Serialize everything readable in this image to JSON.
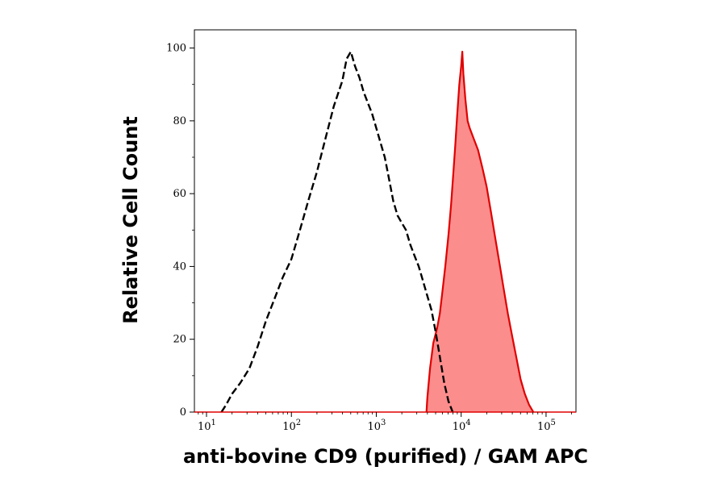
{
  "chart_data": {
    "type": "area",
    "xlabel": "anti-bovine CD9 (purified) / GAM APC",
    "ylabel": "Relative Cell Count",
    "x_scale": "log",
    "xlim": [
      7.2,
      225000
    ],
    "ylim": [
      0,
      105
    ],
    "x_ticks": [
      {
        "value": 10,
        "base": "10",
        "exp": "1"
      },
      {
        "value": 100,
        "base": "10",
        "exp": "2"
      },
      {
        "value": 1000,
        "base": "10",
        "exp": "3"
      },
      {
        "value": 10000,
        "base": "10",
        "exp": "4"
      },
      {
        "value": 100000,
        "base": "10",
        "exp": "5"
      }
    ],
    "y_ticks": [
      {
        "value": 0,
        "label": "0"
      },
      {
        "value": 20,
        "label": "20"
      },
      {
        "value": 40,
        "label": "40"
      },
      {
        "value": 60,
        "label": "60"
      },
      {
        "value": 80,
        "label": "80"
      },
      {
        "value": 100,
        "label": "100"
      }
    ],
    "grid": false,
    "series": [
      {
        "style": "dashed-outline",
        "color": "#000000",
        "points": [
          [
            15,
            0
          ],
          [
            17,
            2
          ],
          [
            20,
            5
          ],
          [
            25,
            8
          ],
          [
            32,
            12
          ],
          [
            40,
            18
          ],
          [
            50,
            25
          ],
          [
            63,
            31
          ],
          [
            79,
            37
          ],
          [
            100,
            42
          ],
          [
            126,
            50
          ],
          [
            158,
            58
          ],
          [
            200,
            66
          ],
          [
            251,
            75
          ],
          [
            316,
            84
          ],
          [
            398,
            91
          ],
          [
            447,
            97
          ],
          [
            501,
            99
          ],
          [
            562,
            95
          ],
          [
            631,
            92
          ],
          [
            708,
            88
          ],
          [
            794,
            85
          ],
          [
            891,
            82
          ],
          [
            1000,
            78
          ],
          [
            1122,
            74
          ],
          [
            1259,
            70
          ],
          [
            1413,
            64
          ],
          [
            1585,
            58
          ],
          [
            1778,
            54
          ],
          [
            1995,
            52
          ],
          [
            2239,
            50
          ],
          [
            2512,
            46
          ],
          [
            2818,
            43
          ],
          [
            3162,
            40
          ],
          [
            3548,
            36
          ],
          [
            3981,
            32
          ],
          [
            4467,
            28
          ],
          [
            5012,
            22
          ],
          [
            5623,
            15
          ],
          [
            6310,
            8
          ],
          [
            7079,
            3
          ],
          [
            7943,
            0
          ]
        ]
      },
      {
        "style": "filled",
        "color": "#e00000",
        "fill": "#fc8d8d",
        "points": [
          [
            3900,
            0
          ],
          [
            4000,
            4
          ],
          [
            4300,
            12
          ],
          [
            4700,
            19
          ],
          [
            5200,
            23
          ],
          [
            5600,
            27
          ],
          [
            6000,
            33
          ],
          [
            6500,
            40
          ],
          [
            7100,
            49
          ],
          [
            7600,
            57
          ],
          [
            8100,
            66
          ],
          [
            8500,
            73
          ],
          [
            9000,
            82
          ],
          [
            9500,
            90
          ],
          [
            10000,
            95
          ],
          [
            10300,
            99
          ],
          [
            10600,
            93
          ],
          [
            11200,
            86
          ],
          [
            11900,
            80
          ],
          [
            12600,
            78
          ],
          [
            14100,
            75
          ],
          [
            15800,
            72
          ],
          [
            17800,
            67
          ],
          [
            19900,
            62
          ],
          [
            22400,
            55
          ],
          [
            25100,
            48
          ],
          [
            28200,
            41
          ],
          [
            31600,
            34
          ],
          [
            35500,
            27
          ],
          [
            39800,
            21
          ],
          [
            44700,
            15
          ],
          [
            50100,
            9
          ],
          [
            56200,
            5
          ],
          [
            63100,
            2
          ],
          [
            70800,
            0
          ]
        ]
      }
    ]
  }
}
